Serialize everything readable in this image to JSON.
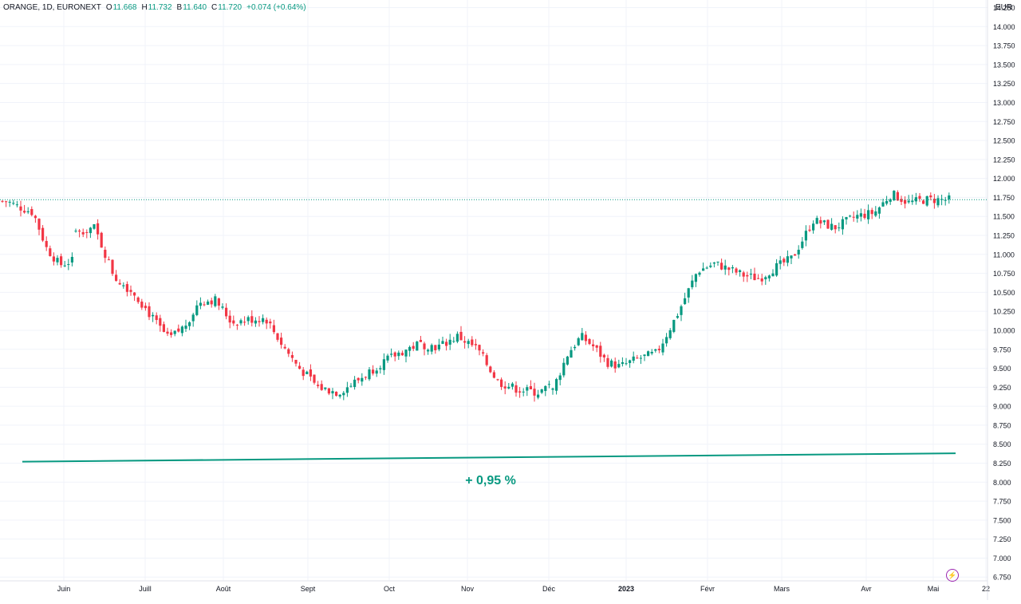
{
  "legend": {
    "symbol": "ORANGE, 1D, EURONEXT",
    "open_label": "O",
    "open": "11.668",
    "high_label": "H",
    "high": "11.732",
    "low_label": "B",
    "low": "11.640",
    "close_label": "C",
    "close": "11.720",
    "change": "+0.074 (+0.64%)"
  },
  "currency": "EUR",
  "annotation": "+ 0,95 %",
  "colors": {
    "up": "#089981",
    "down": "#f23645",
    "trend": "#089981",
    "grid": "#f0f3fa",
    "price_line": "#089981"
  },
  "icons": {
    "lightning": "lightning-icon"
  },
  "chart_data": {
    "type": "candlestick",
    "x_labels": [
      "Juin",
      "Juill",
      "Août",
      "Sept",
      "Oct",
      "Nov",
      "Déc",
      "2023",
      "Févr",
      "Mars",
      "Avr",
      "Mai",
      "22"
    ],
    "y_ticks": [
      "6.750",
      "7.000",
      "7.250",
      "7.500",
      "7.750",
      "8.000",
      "8.250",
      "8.500",
      "8.750",
      "9.000",
      "9.250",
      "9.500",
      "9.750",
      "10.000",
      "10.250",
      "10.500",
      "10.750",
      "11.000",
      "11.250",
      "11.500",
      "11.750",
      "12.000",
      "12.250",
      "12.500",
      "12.750",
      "13.000",
      "13.250",
      "13.500",
      "13.750",
      "14.000",
      "14.250"
    ],
    "ylim": [
      6.7,
      14.35
    ],
    "last_price": 11.72,
    "trend_line": {
      "start": 8.27,
      "end": 8.38
    },
    "anchors": [
      [
        "Juin",
        11.7
      ],
      [
        "Juin",
        11.62
      ],
      [
        "Juin",
        11.55
      ],
      [
        "Juin",
        11.08
      ],
      [
        "Juin",
        10.86
      ],
      [
        "Juin",
        10.92
      ],
      [
        "Juill",
        11.3
      ],
      [
        "Juill",
        11.35
      ],
      [
        "Juill",
        10.7
      ],
      [
        "Juill",
        10.48
      ],
      [
        "Août",
        10.15
      ],
      [
        "Août",
        9.88
      ],
      [
        "Août",
        10.05
      ],
      [
        "Août",
        10.38
      ],
      [
        "Août",
        10.4
      ],
      [
        "Sept",
        10.1
      ],
      [
        "Sept",
        10.14
      ],
      [
        "Sept",
        10.16
      ],
      [
        "Sept",
        9.8
      ],
      [
        "Sept",
        9.5
      ],
      [
        "Oct",
        9.25
      ],
      [
        "Oct",
        9.18
      ],
      [
        "Oct",
        9.35
      ],
      [
        "Oct",
        9.55
      ],
      [
        "Nov",
        9.7
      ],
      [
        "Nov",
        9.82
      ],
      [
        "Nov",
        9.78
      ],
      [
        "Nov",
        9.92
      ],
      [
        "Déc",
        9.75
      ],
      [
        "Déc",
        9.32
      ],
      [
        "Déc",
        9.22
      ],
      [
        "Déc",
        9.18
      ],
      [
        "2023",
        9.3
      ],
      [
        "2023",
        9.7
      ],
      [
        "2023",
        9.92
      ],
      [
        "2023",
        9.78
      ],
      [
        "2023",
        9.58
      ],
      [
        "2023",
        9.52
      ],
      [
        "Févr",
        9.62
      ],
      [
        "Févr",
        9.7
      ],
      [
        "Févr",
        10.2
      ],
      [
        "Févr",
        10.78
      ],
      [
        "Mars",
        10.88
      ],
      [
        "Mars",
        10.8
      ],
      [
        "Mars",
        10.72
      ],
      [
        "Mars",
        10.68
      ],
      [
        "Mars",
        10.82
      ],
      [
        "Avr",
        10.95
      ],
      [
        "Avr",
        11.45
      ],
      [
        "Avr",
        11.35
      ],
      [
        "Avr",
        11.5
      ],
      [
        "Mai",
        11.55
      ],
      [
        "Mai",
        11.8
      ],
      [
        "Mai",
        11.68
      ],
      [
        "Mai",
        11.72
      ]
    ]
  }
}
